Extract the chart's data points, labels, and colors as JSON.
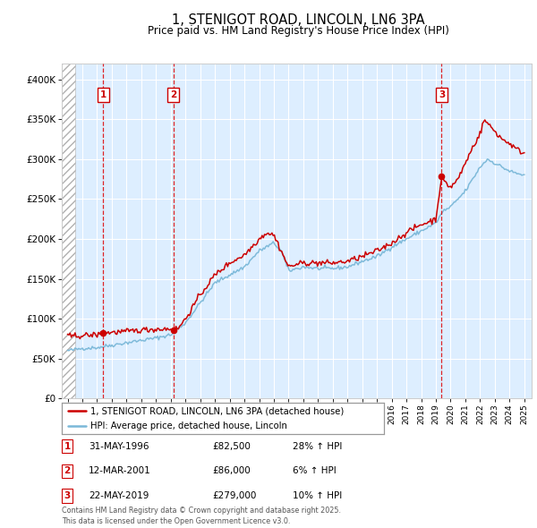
{
  "title": "1, STENIGOT ROAD, LINCOLN, LN6 3PA",
  "subtitle": "Price paid vs. HM Land Registry's House Price Index (HPI)",
  "legend_line1": "1, STENIGOT ROAD, LINCOLN, LN6 3PA (detached house)",
  "legend_line2": "HPI: Average price, detached house, Lincoln",
  "footer": "Contains HM Land Registry data © Crown copyright and database right 2025.\nThis data is licensed under the Open Government Licence v3.0.",
  "sales": [
    {
      "num": 1,
      "date": "31-MAY-1996",
      "date_x": 1996.42,
      "price": 82500,
      "label": "£82,500",
      "pct": "28% ↑ HPI"
    },
    {
      "num": 2,
      "date": "12-MAR-2001",
      "date_x": 2001.19,
      "price": 86000,
      "label": "£86,000",
      "pct": "6% ↑ HPI"
    },
    {
      "num": 3,
      "date": "22-MAY-2019",
      "date_x": 2019.39,
      "price": 279000,
      "label": "£279,000",
      "pct": "10% ↑ HPI"
    }
  ],
  "hpi_color": "#7ab8d8",
  "price_color": "#cc0000",
  "background_color": "#ddeeff",
  "ylim": [
    0,
    420000
  ],
  "yticks": [
    0,
    50000,
    100000,
    150000,
    200000,
    250000,
    300000,
    350000,
    400000
  ],
  "xmin": 1993.6,
  "xmax": 2025.5,
  "hpi_base": {
    "1994.0": 60000,
    "1995.0": 63000,
    "1996.0": 64000,
    "1997.0": 67000,
    "1998.0": 70000,
    "1999.0": 73000,
    "2000.0": 76000,
    "2001.0": 80000,
    "2002.0": 95000,
    "2003.0": 120000,
    "2004.0": 145000,
    "2005.0": 155000,
    "2006.0": 165000,
    "2007.0": 185000,
    "2008.0": 195000,
    "2008.5": 185000,
    "2009.0": 160000,
    "2010.0": 165000,
    "2011.0": 163000,
    "2012.0": 163000,
    "2013.0": 165000,
    "2014.0": 172000,
    "2015.0": 178000,
    "2016.0": 190000,
    "2017.0": 200000,
    "2018.0": 210000,
    "2019.0": 220000,
    "2019.5": 235000,
    "2020.0": 240000,
    "2021.0": 260000,
    "2022.0": 290000,
    "2022.5": 300000,
    "2023.0": 295000,
    "2023.5": 290000,
    "2024.0": 285000,
    "2024.5": 282000,
    "2025.0": 280000
  },
  "price_base": {
    "1994.0": 78000,
    "1994.5": 78500,
    "1995.0": 79000,
    "1996.0": 80000,
    "1996.42": 82500,
    "1997.0": 83000,
    "1998.0": 84000,
    "1999.0": 86000,
    "2000.0": 87000,
    "2001.0": 87500,
    "2001.19": 86000,
    "2001.5": 88000,
    "2002.0": 100000,
    "2003.0": 130000,
    "2004.0": 155000,
    "2005.0": 170000,
    "2006.0": 180000,
    "2007.0": 200000,
    "2007.5": 208000,
    "2008.0": 205000,
    "2008.5": 185000,
    "2009.0": 165000,
    "2009.5": 168000,
    "2010.0": 170000,
    "2011.0": 170000,
    "2012.0": 170000,
    "2013.0": 172000,
    "2014.0": 178000,
    "2015.0": 185000,
    "2016.0": 195000,
    "2017.0": 208000,
    "2018.0": 218000,
    "2019.0": 225000,
    "2019.39": 279000,
    "2019.5": 272000,
    "2020.0": 265000,
    "2020.5": 275000,
    "2021.0": 295000,
    "2021.5": 315000,
    "2022.0": 332000,
    "2022.3": 350000,
    "2022.5": 345000,
    "2023.0": 335000,
    "2023.5": 325000,
    "2024.0": 320000,
    "2024.5": 312000,
    "2025.0": 308000
  }
}
